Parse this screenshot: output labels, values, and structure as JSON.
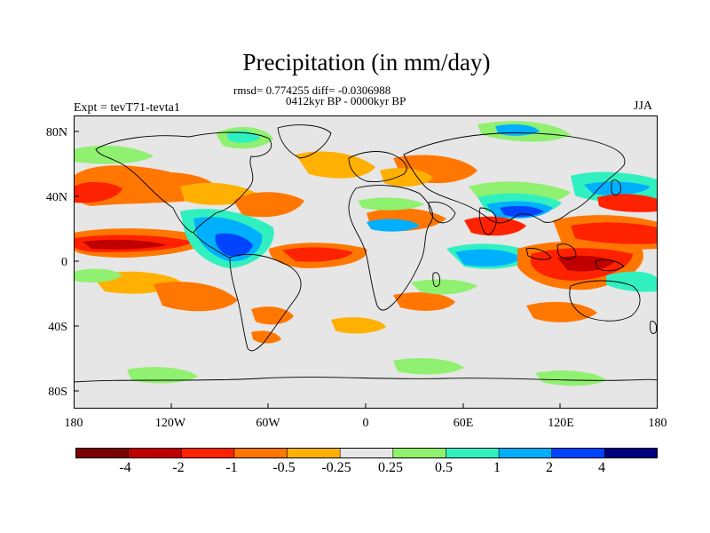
{
  "title": "Precipitation (in mm/day)",
  "stats_line": "rmsd= 0.774255 diff= -0.0306988",
  "period_line": "0412kyr BP - 0000kyr BP",
  "experiment_label": "Expt = tevT71-tevta1",
  "season": "JJA",
  "axes": {
    "lat_ticks": [
      "80N",
      "40N",
      "0",
      "40S",
      "80S"
    ],
    "lon_ticks": [
      "180",
      "120W",
      "60W",
      "0",
      "60E",
      "120E",
      "180"
    ]
  },
  "colorbar": {
    "colors": [
      "#7a0000",
      "#c00000",
      "#ff2200",
      "#ff7700",
      "#ffb000",
      "#e6e6e6",
      "#90f070",
      "#30f0c0",
      "#00b0ff",
      "#0044ff",
      "#000080"
    ],
    "labels": [
      "-4",
      "-2",
      "-1",
      "-0.5",
      "-0.25",
      "0.25",
      "0.5",
      "1",
      "2",
      "4"
    ]
  },
  "map_features": {
    "neutral_color": "#e6e6e6",
    "coastline_color": "#000000"
  }
}
